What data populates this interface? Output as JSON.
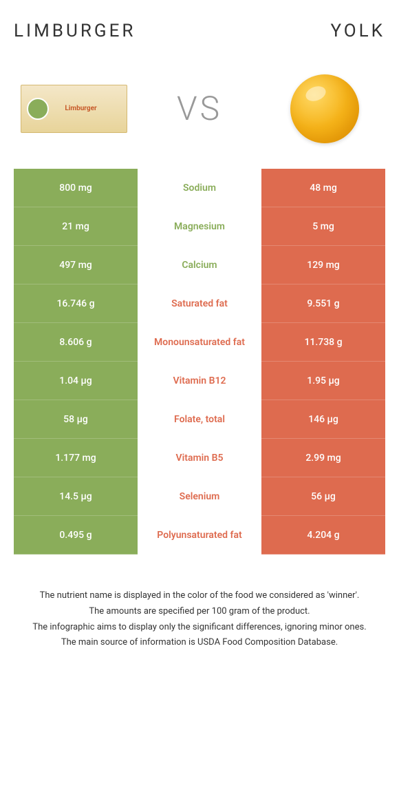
{
  "header": {
    "left_title": "Limburger",
    "right_title": "Yolk"
  },
  "vs": {
    "text": "VS",
    "limburger_label": "Limburger"
  },
  "colors": {
    "left": "#8aad5a",
    "right": "#de6b4f"
  },
  "rows": [
    {
      "left": "800 mg",
      "name": "Sodium",
      "right": "48 mg",
      "winner": "left"
    },
    {
      "left": "21 mg",
      "name": "Magnesium",
      "right": "5 mg",
      "winner": "left"
    },
    {
      "left": "497 mg",
      "name": "Calcium",
      "right": "129 mg",
      "winner": "left"
    },
    {
      "left": "16.746 g",
      "name": "Saturated fat",
      "right": "9.551 g",
      "winner": "right"
    },
    {
      "left": "8.606 g",
      "name": "Monounsaturated fat",
      "right": "11.738 g",
      "winner": "right"
    },
    {
      "left": "1.04 µg",
      "name": "Vitamin B12",
      "right": "1.95 µg",
      "winner": "right"
    },
    {
      "left": "58 µg",
      "name": "Folate, total",
      "right": "146 µg",
      "winner": "right"
    },
    {
      "left": "1.177 mg",
      "name": "Vitamin B5",
      "right": "2.99 mg",
      "winner": "right"
    },
    {
      "left": "14.5 µg",
      "name": "Selenium",
      "right": "56 µg",
      "winner": "right"
    },
    {
      "left": "0.495 g",
      "name": "Polyunsaturated fat",
      "right": "4.204 g",
      "winner": "right"
    }
  ],
  "footer": {
    "line1": "The nutrient name is displayed in the color of the food we considered as 'winner'.",
    "line2": "The amounts are specified per 100 gram of the product.",
    "line3": "The infographic aims to display only the significant differences, ignoring minor ones.",
    "line4": "The main source of information is USDA Food Composition Database."
  }
}
